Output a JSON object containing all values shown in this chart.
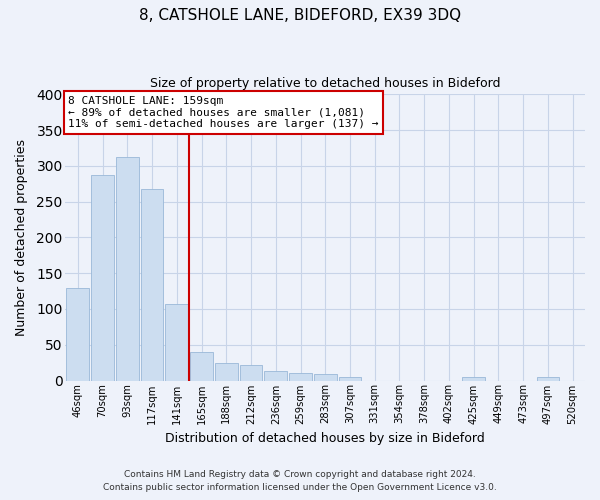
{
  "title": "8, CATSHOLE LANE, BIDEFORD, EX39 3DQ",
  "subtitle": "Size of property relative to detached houses in Bideford",
  "xlabel": "Distribution of detached houses by size in Bideford",
  "ylabel": "Number of detached properties",
  "bar_labels": [
    "46sqm",
    "70sqm",
    "93sqm",
    "117sqm",
    "141sqm",
    "165sqm",
    "188sqm",
    "212sqm",
    "236sqm",
    "259sqm",
    "283sqm",
    "307sqm",
    "331sqm",
    "354sqm",
    "378sqm",
    "402sqm",
    "425sqm",
    "449sqm",
    "473sqm",
    "497sqm",
    "520sqm"
  ],
  "bar_values": [
    130,
    287,
    312,
    268,
    107,
    40,
    25,
    22,
    13,
    10,
    9,
    5,
    0,
    0,
    0,
    0,
    5,
    0,
    0,
    5,
    0
  ],
  "bar_color": "#ccddf0",
  "bar_edge_color": "#9ab8d8",
  "vline_x_index": 5,
  "vline_color": "#cc0000",
  "annotation_line1": "8 CATSHOLE LANE: 159sqm",
  "annotation_line2": "← 89% of detached houses are smaller (1,081)",
  "annotation_line3": "11% of semi-detached houses are larger (137) →",
  "ylim": [
    0,
    400
  ],
  "yticks": [
    0,
    50,
    100,
    150,
    200,
    250,
    300,
    350,
    400
  ],
  "grid_color": "#c8d4e8",
  "footer_line1": "Contains HM Land Registry data © Crown copyright and database right 2024.",
  "footer_line2": "Contains public sector information licensed under the Open Government Licence v3.0.",
  "bg_color": "#eef2fa",
  "plot_bg_color": "#eef2fa"
}
